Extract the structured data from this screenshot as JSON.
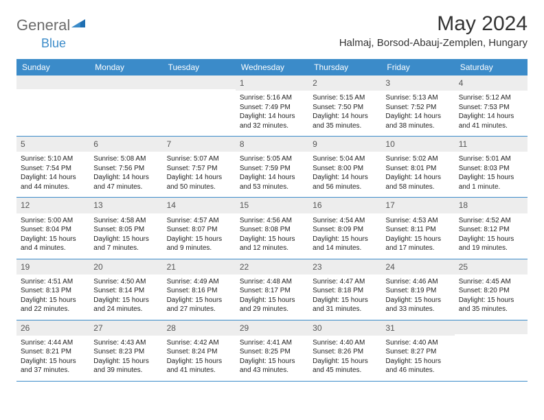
{
  "logo": {
    "word1": "General",
    "word2": "Blue"
  },
  "title": "May 2024",
  "location": "Halmaj, Borsod-Abauj-Zemplen, Hungary",
  "colors": {
    "header_bg": "#3b8bc9",
    "header_text": "#ffffff",
    "daynum_bg": "#ededed",
    "row_border": "#3b8bc9",
    "logo_gray": "#6b6b6b",
    "logo_blue": "#3b8bc9"
  },
  "weekdays": [
    "Sunday",
    "Monday",
    "Tuesday",
    "Wednesday",
    "Thursday",
    "Friday",
    "Saturday"
  ],
  "weeks": [
    [
      {
        "n": "",
        "sr": "",
        "ss": "",
        "dl": ""
      },
      {
        "n": "",
        "sr": "",
        "ss": "",
        "dl": ""
      },
      {
        "n": "",
        "sr": "",
        "ss": "",
        "dl": ""
      },
      {
        "n": "1",
        "sr": "Sunrise: 5:16 AM",
        "ss": "Sunset: 7:49 PM",
        "dl": "Daylight: 14 hours and 32 minutes."
      },
      {
        "n": "2",
        "sr": "Sunrise: 5:15 AM",
        "ss": "Sunset: 7:50 PM",
        "dl": "Daylight: 14 hours and 35 minutes."
      },
      {
        "n": "3",
        "sr": "Sunrise: 5:13 AM",
        "ss": "Sunset: 7:52 PM",
        "dl": "Daylight: 14 hours and 38 minutes."
      },
      {
        "n": "4",
        "sr": "Sunrise: 5:12 AM",
        "ss": "Sunset: 7:53 PM",
        "dl": "Daylight: 14 hours and 41 minutes."
      }
    ],
    [
      {
        "n": "5",
        "sr": "Sunrise: 5:10 AM",
        "ss": "Sunset: 7:54 PM",
        "dl": "Daylight: 14 hours and 44 minutes."
      },
      {
        "n": "6",
        "sr": "Sunrise: 5:08 AM",
        "ss": "Sunset: 7:56 PM",
        "dl": "Daylight: 14 hours and 47 minutes."
      },
      {
        "n": "7",
        "sr": "Sunrise: 5:07 AM",
        "ss": "Sunset: 7:57 PM",
        "dl": "Daylight: 14 hours and 50 minutes."
      },
      {
        "n": "8",
        "sr": "Sunrise: 5:05 AM",
        "ss": "Sunset: 7:59 PM",
        "dl": "Daylight: 14 hours and 53 minutes."
      },
      {
        "n": "9",
        "sr": "Sunrise: 5:04 AM",
        "ss": "Sunset: 8:00 PM",
        "dl": "Daylight: 14 hours and 56 minutes."
      },
      {
        "n": "10",
        "sr": "Sunrise: 5:02 AM",
        "ss": "Sunset: 8:01 PM",
        "dl": "Daylight: 14 hours and 58 minutes."
      },
      {
        "n": "11",
        "sr": "Sunrise: 5:01 AM",
        "ss": "Sunset: 8:03 PM",
        "dl": "Daylight: 15 hours and 1 minute."
      }
    ],
    [
      {
        "n": "12",
        "sr": "Sunrise: 5:00 AM",
        "ss": "Sunset: 8:04 PM",
        "dl": "Daylight: 15 hours and 4 minutes."
      },
      {
        "n": "13",
        "sr": "Sunrise: 4:58 AM",
        "ss": "Sunset: 8:05 PM",
        "dl": "Daylight: 15 hours and 7 minutes."
      },
      {
        "n": "14",
        "sr": "Sunrise: 4:57 AM",
        "ss": "Sunset: 8:07 PM",
        "dl": "Daylight: 15 hours and 9 minutes."
      },
      {
        "n": "15",
        "sr": "Sunrise: 4:56 AM",
        "ss": "Sunset: 8:08 PM",
        "dl": "Daylight: 15 hours and 12 minutes."
      },
      {
        "n": "16",
        "sr": "Sunrise: 4:54 AM",
        "ss": "Sunset: 8:09 PM",
        "dl": "Daylight: 15 hours and 14 minutes."
      },
      {
        "n": "17",
        "sr": "Sunrise: 4:53 AM",
        "ss": "Sunset: 8:11 PM",
        "dl": "Daylight: 15 hours and 17 minutes."
      },
      {
        "n": "18",
        "sr": "Sunrise: 4:52 AM",
        "ss": "Sunset: 8:12 PM",
        "dl": "Daylight: 15 hours and 19 minutes."
      }
    ],
    [
      {
        "n": "19",
        "sr": "Sunrise: 4:51 AM",
        "ss": "Sunset: 8:13 PM",
        "dl": "Daylight: 15 hours and 22 minutes."
      },
      {
        "n": "20",
        "sr": "Sunrise: 4:50 AM",
        "ss": "Sunset: 8:14 PM",
        "dl": "Daylight: 15 hours and 24 minutes."
      },
      {
        "n": "21",
        "sr": "Sunrise: 4:49 AM",
        "ss": "Sunset: 8:16 PM",
        "dl": "Daylight: 15 hours and 27 minutes."
      },
      {
        "n": "22",
        "sr": "Sunrise: 4:48 AM",
        "ss": "Sunset: 8:17 PM",
        "dl": "Daylight: 15 hours and 29 minutes."
      },
      {
        "n": "23",
        "sr": "Sunrise: 4:47 AM",
        "ss": "Sunset: 8:18 PM",
        "dl": "Daylight: 15 hours and 31 minutes."
      },
      {
        "n": "24",
        "sr": "Sunrise: 4:46 AM",
        "ss": "Sunset: 8:19 PM",
        "dl": "Daylight: 15 hours and 33 minutes."
      },
      {
        "n": "25",
        "sr": "Sunrise: 4:45 AM",
        "ss": "Sunset: 8:20 PM",
        "dl": "Daylight: 15 hours and 35 minutes."
      }
    ],
    [
      {
        "n": "26",
        "sr": "Sunrise: 4:44 AM",
        "ss": "Sunset: 8:21 PM",
        "dl": "Daylight: 15 hours and 37 minutes."
      },
      {
        "n": "27",
        "sr": "Sunrise: 4:43 AM",
        "ss": "Sunset: 8:23 PM",
        "dl": "Daylight: 15 hours and 39 minutes."
      },
      {
        "n": "28",
        "sr": "Sunrise: 4:42 AM",
        "ss": "Sunset: 8:24 PM",
        "dl": "Daylight: 15 hours and 41 minutes."
      },
      {
        "n": "29",
        "sr": "Sunrise: 4:41 AM",
        "ss": "Sunset: 8:25 PM",
        "dl": "Daylight: 15 hours and 43 minutes."
      },
      {
        "n": "30",
        "sr": "Sunrise: 4:40 AM",
        "ss": "Sunset: 8:26 PM",
        "dl": "Daylight: 15 hours and 45 minutes."
      },
      {
        "n": "31",
        "sr": "Sunrise: 4:40 AM",
        "ss": "Sunset: 8:27 PM",
        "dl": "Daylight: 15 hours and 46 minutes."
      },
      {
        "n": "",
        "sr": "",
        "ss": "",
        "dl": ""
      }
    ]
  ]
}
